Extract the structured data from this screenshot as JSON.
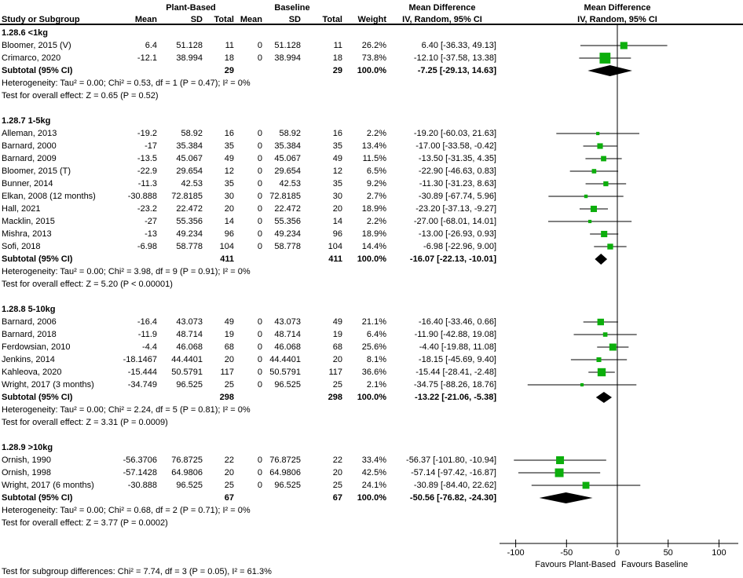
{
  "colors": {
    "marker_green": "#0CAE0C",
    "diamond_black": "#000000",
    "line_black": "#000000"
  },
  "header": {
    "group1": "Plant-Based",
    "group2": "Baseline",
    "col_study": "Study or Subgroup",
    "col_mean": "Mean",
    "col_sd": "SD",
    "col_total": "Total",
    "col_weight": "Weight",
    "col_md": "Mean Difference",
    "col_ci": "IV, Random, 95% CI"
  },
  "axis": {
    "ticks": [
      -100,
      -50,
      0,
      50,
      100
    ],
    "tick_labels": [
      "-100",
      "-50",
      "0",
      "50",
      "100"
    ],
    "favours_left": "Favours Plant-Based",
    "favours_right": "Favours Baseline"
  },
  "footer": {
    "subgroup_test": "Test for subgroup differences: Chi² = 7.74, df = 3 (P = 0.05), I² = 61.3%"
  },
  "chart_data": {
    "type": "forest",
    "effect_measure": "Mean Difference, IV, Random, 95% CI",
    "x_axis_range": [
      -116,
      119
    ],
    "subgroups": [
      {
        "title": "1.28.6 <1kg",
        "studies": [
          {
            "study": "Bloomer, 2015 (V)",
            "pb_mean": "6.4",
            "pb_sd": "51.128",
            "pb_total": "11",
            "bl_mean": "0",
            "bl_sd": "51.128",
            "bl_total": "11",
            "weight": "26.2%",
            "ci": "6.40 [-36.33, 49.13]",
            "est": 6.4,
            "lo": -36.33,
            "hi": 49.13,
            "w": 26.2
          },
          {
            "study": "Crimarco, 2020",
            "pb_mean": "-12.1",
            "pb_sd": "38.994",
            "pb_total": "18",
            "bl_mean": "0",
            "bl_sd": "38.994",
            "bl_total": "18",
            "weight": "73.8%",
            "ci": "-12.10 [-37.58, 13.38]",
            "est": -12.1,
            "lo": -37.58,
            "hi": 13.38,
            "w": 73.8
          }
        ],
        "subtotal": {
          "label": "Subtotal (95% CI)",
          "pb_total": "29",
          "bl_total": "29",
          "weight": "100.0%",
          "ci": "-7.25 [-29.13, 14.63]",
          "est": -7.25,
          "lo": -29.13,
          "hi": 14.63
        },
        "heterogeneity": "Heterogeneity: Tau² = 0.00; Chi² = 0.53, df = 1 (P = 0.47); I² = 0%",
        "overall": "Test for overall effect: Z = 0.65 (P = 0.52)"
      },
      {
        "title": "1.28.7 1-5kg",
        "studies": [
          {
            "study": "Alleman, 2013",
            "pb_mean": "-19.2",
            "pb_sd": "58.92",
            "pb_total": "16",
            "bl_mean": "0",
            "bl_sd": "58.92",
            "bl_total": "16",
            "weight": "2.2%",
            "ci": "-19.20 [-60.03, 21.63]",
            "est": -19.2,
            "lo": -60.03,
            "hi": 21.63,
            "w": 2.2
          },
          {
            "study": "Barnard, 2000",
            "pb_mean": "-17",
            "pb_sd": "35.384",
            "pb_total": "35",
            "bl_mean": "0",
            "bl_sd": "35.384",
            "bl_total": "35",
            "weight": "13.4%",
            "ci": "-17.00 [-33.58, -0.42]",
            "est": -17,
            "lo": -33.58,
            "hi": -0.42,
            "w": 13.4
          },
          {
            "study": "Barnard, 2009",
            "pb_mean": "-13.5",
            "pb_sd": "45.067",
            "pb_total": "49",
            "bl_mean": "0",
            "bl_sd": "45.067",
            "bl_total": "49",
            "weight": "11.5%",
            "ci": "-13.50 [-31.35, 4.35]",
            "est": -13.5,
            "lo": -31.35,
            "hi": 4.35,
            "w": 11.5
          },
          {
            "study": "Bloomer, 2015 (T)",
            "pb_mean": "-22.9",
            "pb_sd": "29.654",
            "pb_total": "12",
            "bl_mean": "0",
            "bl_sd": "29.654",
            "bl_total": "12",
            "weight": "6.5%",
            "ci": "-22.90 [-46.63, 0.83]",
            "est": -22.9,
            "lo": -46.63,
            "hi": 0.83,
            "w": 6.5
          },
          {
            "study": "Bunner, 2014",
            "pb_mean": "-11.3",
            "pb_sd": "42.53",
            "pb_total": "35",
            "bl_mean": "0",
            "bl_sd": "42.53",
            "bl_total": "35",
            "weight": "9.2%",
            "ci": "-11.30 [-31.23, 8.63]",
            "est": -11.3,
            "lo": -31.23,
            "hi": 8.63,
            "w": 9.2
          },
          {
            "study": "Elkan, 2008 (12 months)",
            "pb_mean": "-30.888",
            "pb_sd": "72.8185",
            "pb_total": "30",
            "bl_mean": "0",
            "bl_sd": "72.8185",
            "bl_total": "30",
            "weight": "2.7%",
            "ci": "-30.89 [-67.74, 5.96]",
            "est": -30.89,
            "lo": -67.74,
            "hi": 5.96,
            "w": 2.7
          },
          {
            "study": "Hall, 2021",
            "pb_mean": "-23.2",
            "pb_sd": "22.472",
            "pb_total": "20",
            "bl_mean": "0",
            "bl_sd": "22.472",
            "bl_total": "20",
            "weight": "18.9%",
            "ci": "-23.20 [-37.13, -9.27]",
            "est": -23.2,
            "lo": -37.13,
            "hi": -9.27,
            "w": 18.9
          },
          {
            "study": "Macklin, 2015",
            "pb_mean": "-27",
            "pb_sd": "55.356",
            "pb_total": "14",
            "bl_mean": "0",
            "bl_sd": "55.356",
            "bl_total": "14",
            "weight": "2.2%",
            "ci": "-27.00 [-68.01, 14.01]",
            "est": -27,
            "lo": -68.01,
            "hi": 14.01,
            "w": 2.2
          },
          {
            "study": "Mishra, 2013",
            "pb_mean": "-13",
            "pb_sd": "49.234",
            "pb_total": "96",
            "bl_mean": "0",
            "bl_sd": "49.234",
            "bl_total": "96",
            "weight": "18.9%",
            "ci": "-13.00 [-26.93, 0.93]",
            "est": -13,
            "lo": -26.93,
            "hi": 0.93,
            "w": 18.9
          },
          {
            "study": "Sofi, 2018",
            "pb_mean": "-6.98",
            "pb_sd": "58.778",
            "pb_total": "104",
            "bl_mean": "0",
            "bl_sd": "58.778",
            "bl_total": "104",
            "weight": "14.4%",
            "ci": "-6.98 [-22.96, 9.00]",
            "est": -6.98,
            "lo": -22.96,
            "hi": 9.0,
            "w": 14.4
          }
        ],
        "subtotal": {
          "label": "Subtotal (95% CI)",
          "pb_total": "411",
          "bl_total": "411",
          "weight": "100.0%",
          "ci": "-16.07 [-22.13, -10.01]",
          "est": -16.07,
          "lo": -22.13,
          "hi": -10.01
        },
        "heterogeneity": "Heterogeneity: Tau² = 0.00; Chi² = 3.98, df = 9 (P = 0.91); I² = 0%",
        "overall": "Test for overall effect: Z = 5.20 (P < 0.00001)"
      },
      {
        "title": "1.28.8 5-10kg",
        "studies": [
          {
            "study": "Barnard, 2006",
            "pb_mean": "-16.4",
            "pb_sd": "43.073",
            "pb_total": "49",
            "bl_mean": "0",
            "bl_sd": "43.073",
            "bl_total": "49",
            "weight": "21.1%",
            "ci": "-16.40 [-33.46, 0.66]",
            "est": -16.4,
            "lo": -33.46,
            "hi": 0.66,
            "w": 21.1
          },
          {
            "study": "Barnard, 2018",
            "pb_mean": "-11.9",
            "pb_sd": "48.714",
            "pb_total": "19",
            "bl_mean": "0",
            "bl_sd": "48.714",
            "bl_total": "19",
            "weight": "6.4%",
            "ci": "-11.90 [-42.88, 19.08]",
            "est": -11.9,
            "lo": -42.88,
            "hi": 19.08,
            "w": 6.4
          },
          {
            "study": "Ferdowsian, 2010",
            "pb_mean": "-4.4",
            "pb_sd": "46.068",
            "pb_total": "68",
            "bl_mean": "0",
            "bl_sd": "46.068",
            "bl_total": "68",
            "weight": "25.6%",
            "ci": "-4.40 [-19.88, 11.08]",
            "est": -4.4,
            "lo": -19.88,
            "hi": 11.08,
            "w": 25.6
          },
          {
            "study": "Jenkins, 2014",
            "pb_mean": "-18.1467",
            "pb_sd": "44.4401",
            "pb_total": "20",
            "bl_mean": "0",
            "bl_sd": "44.4401",
            "bl_total": "20",
            "weight": "8.1%",
            "ci": "-18.15 [-45.69, 9.40]",
            "est": -18.15,
            "lo": -45.69,
            "hi": 9.4,
            "w": 8.1
          },
          {
            "study": "Kahleova, 2020",
            "pb_mean": "-15.444",
            "pb_sd": "50.5791",
            "pb_total": "117",
            "bl_mean": "0",
            "bl_sd": "50.5791",
            "bl_total": "117",
            "weight": "36.6%",
            "ci": "-15.44 [-28.41, -2.48]",
            "est": -15.44,
            "lo": -28.41,
            "hi": -2.48,
            "w": 36.6
          },
          {
            "study": "Wright, 2017 (3 months)",
            "pb_mean": "-34.749",
            "pb_sd": "96.525",
            "pb_total": "25",
            "bl_mean": "0",
            "bl_sd": "96.525",
            "bl_total": "25",
            "weight": "2.1%",
            "ci": "-34.75 [-88.26, 18.76]",
            "est": -34.75,
            "lo": -88.26,
            "hi": 18.76,
            "w": 2.1
          }
        ],
        "subtotal": {
          "label": "Subtotal (95% CI)",
          "pb_total": "298",
          "bl_total": "298",
          "weight": "100.0%",
          "ci": "-13.22 [-21.06, -5.38]",
          "est": -13.22,
          "lo": -21.06,
          "hi": -5.38
        },
        "heterogeneity": "Heterogeneity: Tau² = 0.00; Chi² = 2.24, df = 5 (P = 0.81); I² = 0%",
        "overall": "Test for overall effect: Z = 3.31 (P = 0.0009)"
      },
      {
        "title": "1.28.9 >10kg",
        "studies": [
          {
            "study": "Ornish, 1990",
            "pb_mean": "-56.3706",
            "pb_sd": "76.8725",
            "pb_total": "22",
            "bl_mean": "0",
            "bl_sd": "76.8725",
            "bl_total": "22",
            "weight": "33.4%",
            "ci": "-56.37 [-101.80, -10.94]",
            "est": -56.37,
            "lo": -101.8,
            "hi": -10.94,
            "w": 33.4
          },
          {
            "study": "Ornish, 1998",
            "pb_mean": "-57.1428",
            "pb_sd": "64.9806",
            "pb_total": "20",
            "bl_mean": "0",
            "bl_sd": "64.9806",
            "bl_total": "20",
            "weight": "42.5%",
            "ci": "-57.14 [-97.42, -16.87]",
            "est": -57.14,
            "lo": -97.42,
            "hi": -16.87,
            "w": 42.5
          },
          {
            "study": "Wright, 2017 (6 months)",
            "pb_mean": "-30.888",
            "pb_sd": "96.525",
            "pb_total": "25",
            "bl_mean": "0",
            "bl_sd": "96.525",
            "bl_total": "25",
            "weight": "24.1%",
            "ci": "-30.89 [-84.40, 22.62]",
            "est": -30.89,
            "lo": -84.4,
            "hi": 22.62,
            "w": 24.1
          }
        ],
        "subtotal": {
          "label": "Subtotal (95% CI)",
          "pb_total": "67",
          "bl_total": "67",
          "weight": "100.0%",
          "ci": "-50.56 [-76.82, -24.30]",
          "est": -50.56,
          "lo": -76.82,
          "hi": -24.3
        },
        "heterogeneity": "Heterogeneity: Tau² = 0.00; Chi² = 0.68, df = 2 (P = 0.71); I² = 0%",
        "overall": "Test for overall effect: Z = 3.77 (P = 0.0002)"
      }
    ]
  }
}
